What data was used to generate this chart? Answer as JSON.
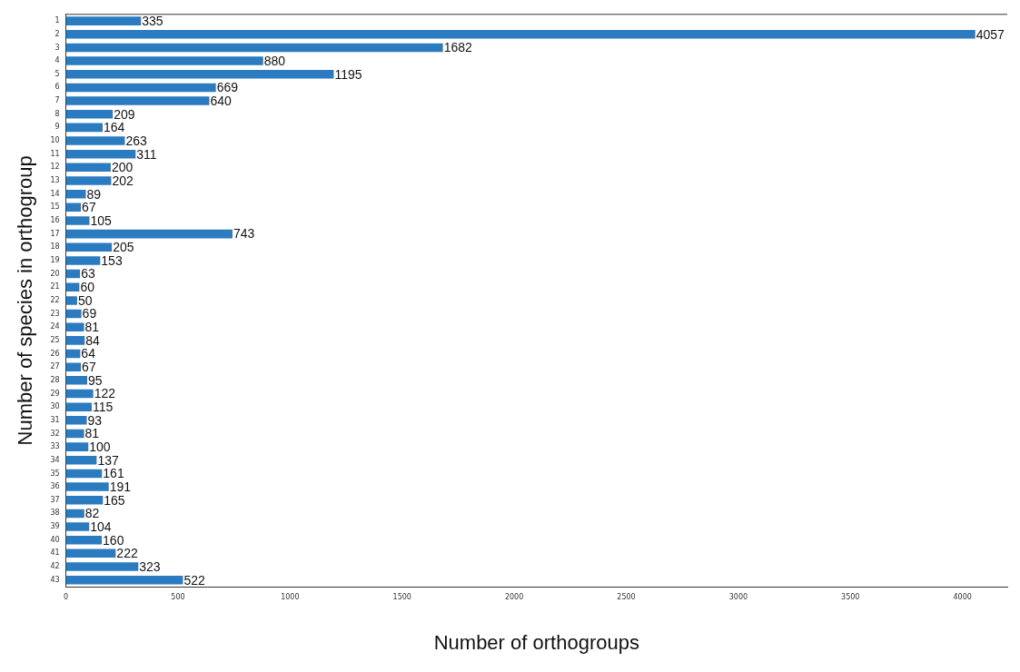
{
  "chart_data": {
    "type": "bar",
    "orientation": "horizontal",
    "xlabel": "Number of orthogroups",
    "ylabel": "Number of species in orthogroup",
    "categories": [
      "1",
      "2",
      "3",
      "4",
      "5",
      "6",
      "7",
      "8",
      "9",
      "10",
      "11",
      "12",
      "13",
      "14",
      "15",
      "16",
      "17",
      "18",
      "19",
      "20",
      "21",
      "22",
      "23",
      "24",
      "25",
      "26",
      "27",
      "28",
      "29",
      "30",
      "31",
      "32",
      "33",
      "34",
      "35",
      "36",
      "37",
      "38",
      "39",
      "40",
      "41",
      "42",
      "43"
    ],
    "values": [
      335,
      4057,
      1682,
      880,
      1195,
      669,
      640,
      209,
      164,
      263,
      311,
      200,
      202,
      89,
      67,
      105,
      743,
      205,
      153,
      63,
      60,
      50,
      69,
      81,
      84,
      64,
      67,
      95,
      122,
      115,
      93,
      81,
      100,
      137,
      161,
      191,
      165,
      82,
      104,
      160,
      222,
      323,
      522
    ],
    "color": "#2a7bbf",
    "xlim": [
      0,
      4200
    ],
    "xticks": [
      0,
      500,
      1000,
      1500,
      2000,
      2500,
      3000,
      3500,
      4000
    ],
    "grid": false,
    "legend": false,
    "data_labels": true
  }
}
